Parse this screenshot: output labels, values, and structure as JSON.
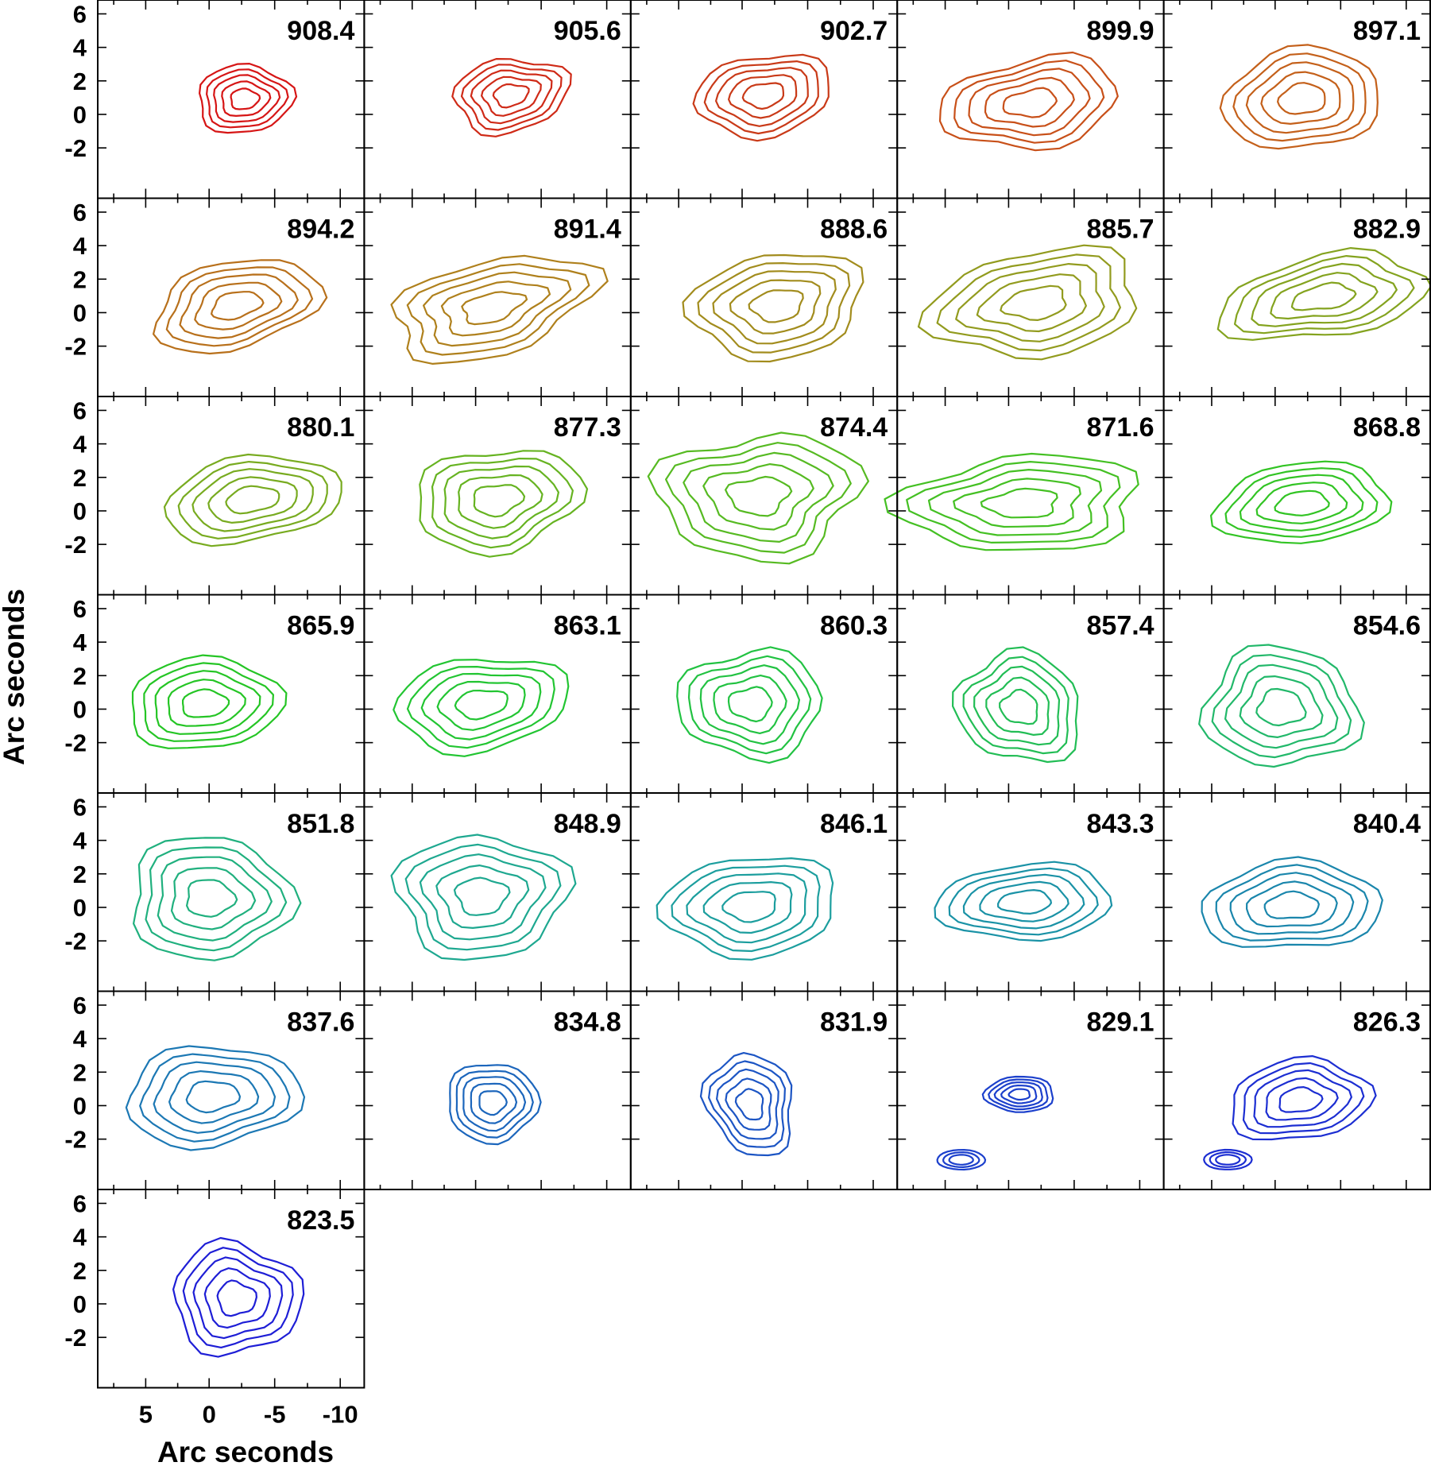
{
  "figure": {
    "y_axis_title": "Arc seconds",
    "x_axis_title": "Arc seconds",
    "y_ticks": [
      "6",
      "4",
      "2",
      "0",
      "-2"
    ],
    "x_ticks": [
      "5",
      "0",
      "-5",
      "-10"
    ]
  },
  "panels": [
    {
      "label": "908.4",
      "color": "#d61515"
    },
    {
      "label": "905.6",
      "color": "#cf2a17"
    },
    {
      "label": "902.7",
      "color": "#c93a18"
    },
    {
      "label": "899.9",
      "color": "#c85019"
    },
    {
      "label": "897.1",
      "color": "#c4601a"
    },
    {
      "label": "894.2",
      "color": "#b8701b"
    },
    {
      "label": "891.4",
      "color": "#af801c"
    },
    {
      "label": "888.6",
      "color": "#a28c1d"
    },
    {
      "label": "885.7",
      "color": "#929b1e"
    },
    {
      "label": "882.9",
      "color": "#84a31f"
    },
    {
      "label": "880.1",
      "color": "#78ab20"
    },
    {
      "label": "877.3",
      "color": "#66b321"
    },
    {
      "label": "874.4",
      "color": "#56ba22"
    },
    {
      "label": "871.6",
      "color": "#44c023"
    },
    {
      "label": "868.8",
      "color": "#32c424"
    },
    {
      "label": "865.9",
      "color": "#25c525"
    },
    {
      "label": "863.1",
      "color": "#22c532"
    },
    {
      "label": "860.3",
      "color": "#22c242"
    },
    {
      "label": "857.4",
      "color": "#22bd55"
    },
    {
      "label": "854.6",
      "color": "#22b86a"
    },
    {
      "label": "851.8",
      "color": "#20b07e"
    },
    {
      "label": "848.9",
      "color": "#1ea890"
    },
    {
      "label": "846.1",
      "color": "#1c9e9e"
    },
    {
      "label": "843.3",
      "color": "#1a92a6"
    },
    {
      "label": "840.4",
      "color": "#1a86ac"
    },
    {
      "label": "837.6",
      "color": "#1c78b4"
    },
    {
      "label": "834.8",
      "color": "#1c66bc"
    },
    {
      "label": "831.9",
      "color": "#1c55c4"
    },
    {
      "label": "829.1",
      "color": "#1c40cc"
    },
    {
      "label": "826.3",
      "color": "#1c2ed2"
    },
    {
      "label": "823.5",
      "color": "#1e1ed6"
    }
  ]
}
